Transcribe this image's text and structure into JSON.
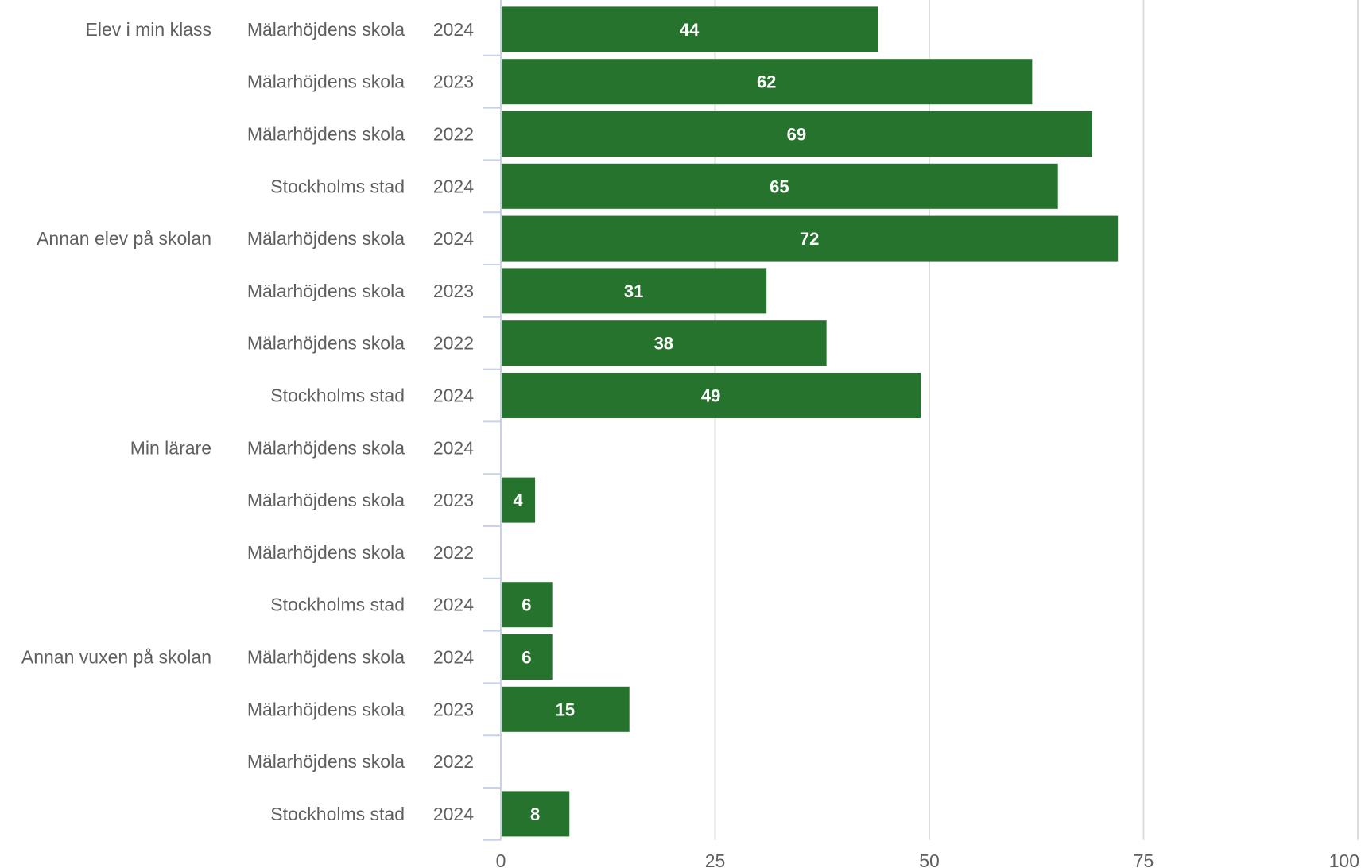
{
  "chart_data": {
    "type": "bar",
    "orientation": "horizontal",
    "title": "",
    "xlabel": "",
    "ylabel": "",
    "xlim": [
      0,
      100
    ],
    "x_ticks": [
      "0",
      "25",
      "50",
      "75",
      "100"
    ],
    "grid": true,
    "bar_color": "#25732d",
    "rows": [
      {
        "group": "Elev i min klass",
        "category": "Mälarhöjdens skola",
        "year": "2024",
        "value": 44
      },
      {
        "group": "",
        "category": "Mälarhöjdens skola",
        "year": "2023",
        "value": 62
      },
      {
        "group": "",
        "category": "Mälarhöjdens skola",
        "year": "2022",
        "value": 69
      },
      {
        "group": "",
        "category": "Stockholms stad",
        "year": "2024",
        "value": 65
      },
      {
        "group": "Annan elev på skolan",
        "category": "Mälarhöjdens skola",
        "year": "2024",
        "value": 72
      },
      {
        "group": "",
        "category": "Mälarhöjdens skola",
        "year": "2023",
        "value": 31
      },
      {
        "group": "",
        "category": "Mälarhöjdens skola",
        "year": "2022",
        "value": 38
      },
      {
        "group": "",
        "category": "Stockholms stad",
        "year": "2024",
        "value": 49
      },
      {
        "group": "Min lärare",
        "category": "Mälarhöjdens skola",
        "year": "2024",
        "value": null
      },
      {
        "group": "",
        "category": "Mälarhöjdens skola",
        "year": "2023",
        "value": 4
      },
      {
        "group": "",
        "category": "Mälarhöjdens skola",
        "year": "2022",
        "value": null
      },
      {
        "group": "",
        "category": "Stockholms stad",
        "year": "2024",
        "value": 6
      },
      {
        "group": "Annan vuxen på skolan",
        "category": "Mälarhöjdens skola",
        "year": "2024",
        "value": 6
      },
      {
        "group": "",
        "category": "Mälarhöjdens skola",
        "year": "2023",
        "value": 15
      },
      {
        "group": "",
        "category": "Mälarhöjdens skola",
        "year": "2022",
        "value": null
      },
      {
        "group": "",
        "category": "Stockholms stad",
        "year": "2024",
        "value": 8
      }
    ]
  }
}
